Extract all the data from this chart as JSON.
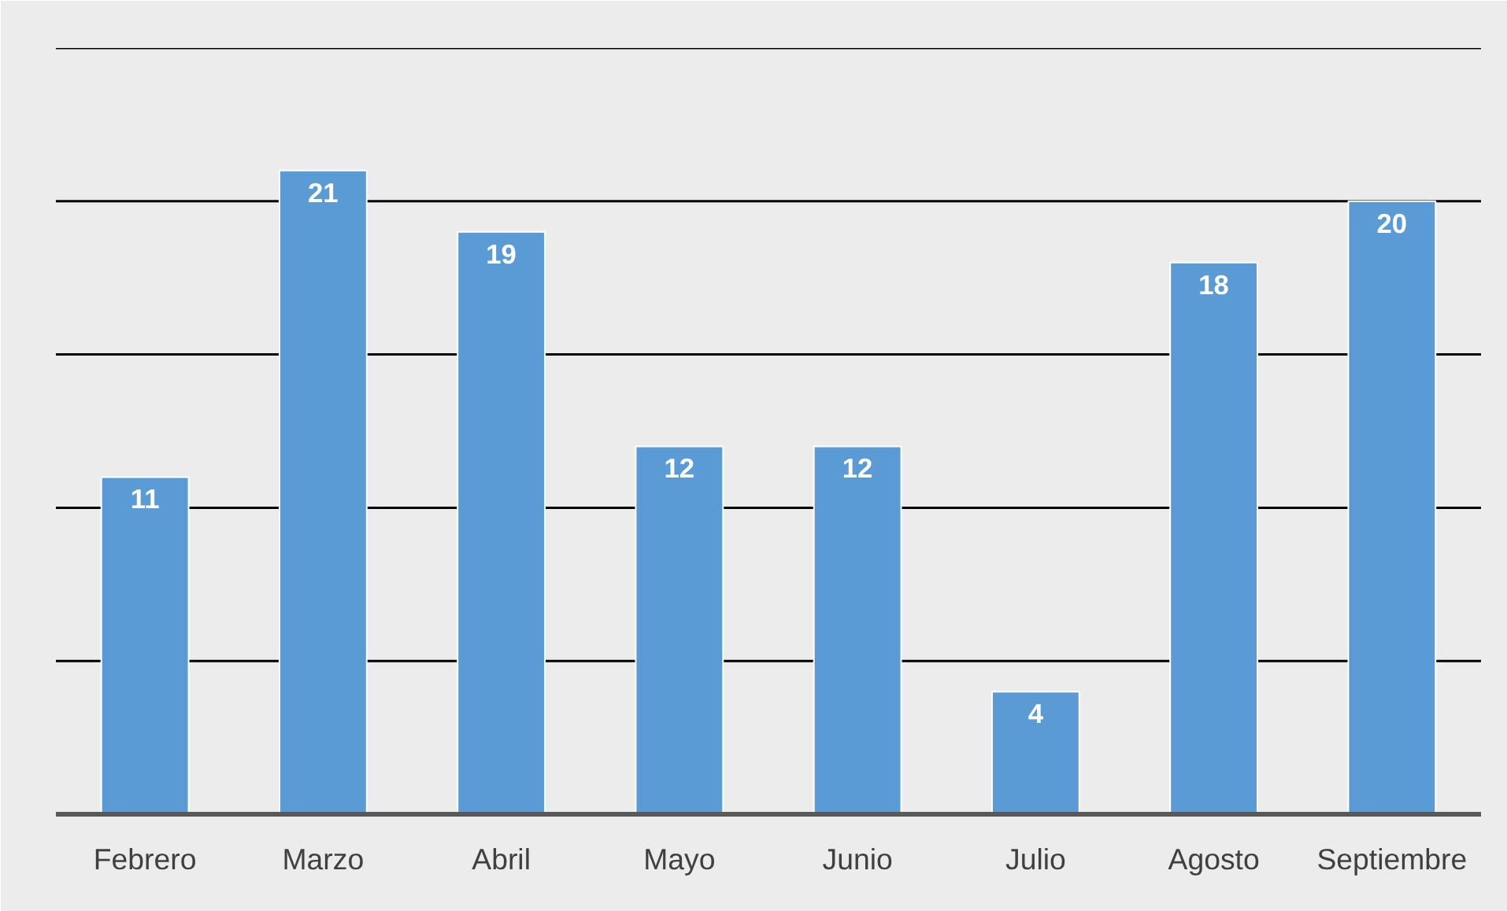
{
  "chart_data": {
    "type": "bar",
    "categories": [
      "Febrero",
      "Marzo",
      "Abril",
      "Mayo",
      "Junio",
      "Julio",
      "Agosto",
      "Septiembre"
    ],
    "values": [
      11,
      21,
      19,
      12,
      12,
      4,
      18,
      20
    ],
    "color": "#5b9bd5",
    "ylim": [
      0,
      25
    ],
    "yticks": [
      {
        "value": 0,
        "label": null
      },
      {
        "value": 5,
        "label": null
      },
      {
        "value": 10,
        "label": null
      },
      {
        "value": 15,
        "label": null
      },
      {
        "value": 20,
        "label": null
      },
      {
        "value": 25,
        "label": null
      }
    ],
    "tick_labels": "x",
    "grid": "y",
    "data_labels": true
  }
}
